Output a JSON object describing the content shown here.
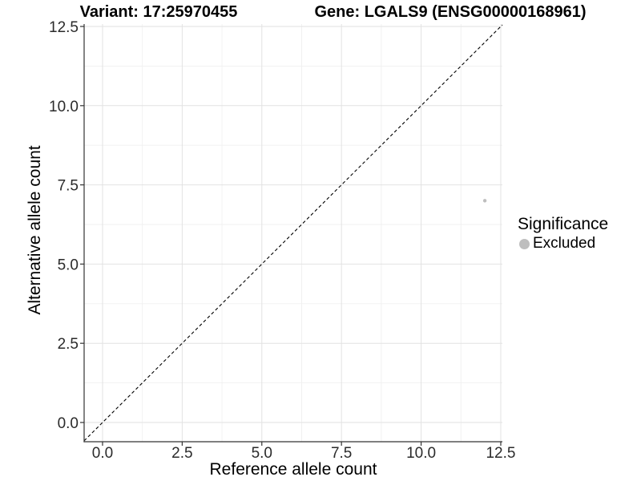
{
  "chart_data": {
    "type": "scatter",
    "title_variant": "Variant: 17:25970455",
    "title_gene": "Gene: LGALS9 (ENSG00000168961)",
    "xlabel": "Reference allele count",
    "ylabel": "Alternative allele count",
    "x_ticks": [
      0.0,
      2.5,
      5.0,
      7.5,
      10.0,
      12.5
    ],
    "y_ticks": [
      0.0,
      2.5,
      5.0,
      7.5,
      10.0,
      12.5
    ],
    "x_tick_labels": [
      "0.0",
      "2.5",
      "5.0",
      "7.5",
      "10.0",
      "12.5"
    ],
    "y_tick_labels": [
      "0.0",
      "2.5",
      "5.0",
      "7.5",
      "10.0",
      "12.5"
    ],
    "xlim": [
      -0.578,
      12.551
    ],
    "ylim": [
      -0.607,
      12.576
    ],
    "grid": "major+minor",
    "reference_line": {
      "type": "identity",
      "style": "dashed",
      "color": "#000000"
    },
    "series": [
      {
        "name": "Excluded",
        "color": "#BEBEBE",
        "points": [
          {
            "x": 12,
            "y": 7
          }
        ]
      }
    ],
    "legend": {
      "position": "right",
      "title": "Significance",
      "entries": [
        {
          "label": "Excluded",
          "color": "#BEBEBE"
        }
      ]
    },
    "colors": {
      "axis_line": "#333333",
      "tick_label": "#2b2b2b",
      "grid_major": "#e2e2e2",
      "grid_minor": "#f0f0f0",
      "background": "#ffffff"
    }
  }
}
